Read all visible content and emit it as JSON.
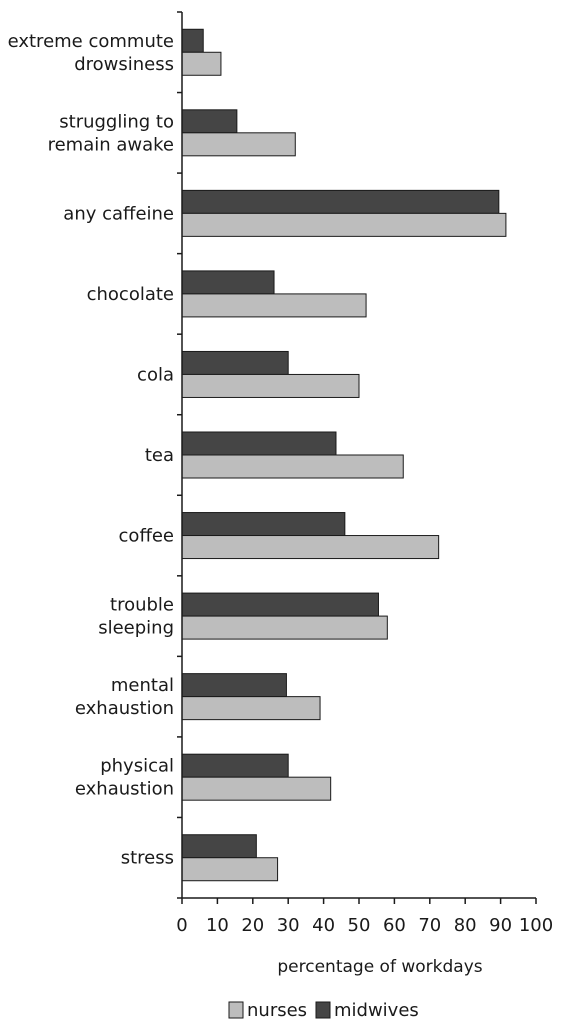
{
  "chart_data": {
    "type": "bar",
    "orientation": "horizontal",
    "categories": [
      "extreme commute drowsiness",
      "struggling to remain awake",
      "any caffeine",
      "chocolate",
      "cola",
      "tea",
      "coffee",
      "trouble sleeping",
      "mental exhaustion",
      "physical exhaustion",
      "stress"
    ],
    "category_lines": [
      [
        "extreme commute",
        "drowsiness"
      ],
      [
        "struggling to",
        "remain awake"
      ],
      [
        "any caffeine"
      ],
      [
        "chocolate"
      ],
      [
        "cola"
      ],
      [
        "tea"
      ],
      [
        "coffee"
      ],
      [
        "trouble",
        "sleeping"
      ],
      [
        "mental",
        "exhaustion"
      ],
      [
        "physical",
        "exhaustion"
      ],
      [
        "stress"
      ]
    ],
    "series": [
      {
        "name": "midwives",
        "color": "#454545",
        "values": [
          6,
          15.5,
          89.5,
          26,
          30,
          43.5,
          46,
          55.5,
          29.5,
          30,
          21
        ]
      },
      {
        "name": "nurses",
        "color": "#bdbdbd",
        "values": [
          11,
          32,
          91.5,
          52,
          50,
          62.5,
          72.5,
          58,
          39,
          42,
          27
        ]
      }
    ],
    "x_ticks": [
      "0",
      "10",
      "20",
      "30",
      "40",
      "50",
      "60",
      "70",
      "80",
      "90",
      "100"
    ],
    "xlim": [
      0,
      100
    ],
    "xlabel": "percentage of workdays",
    "ylabel": "",
    "title": "",
    "grid": false,
    "legend": {
      "position": "bottom-center",
      "items": [
        {
          "label": "nurses",
          "color": "#bdbdbd"
        },
        {
          "label": "midwives",
          "color": "#454545"
        }
      ]
    }
  }
}
